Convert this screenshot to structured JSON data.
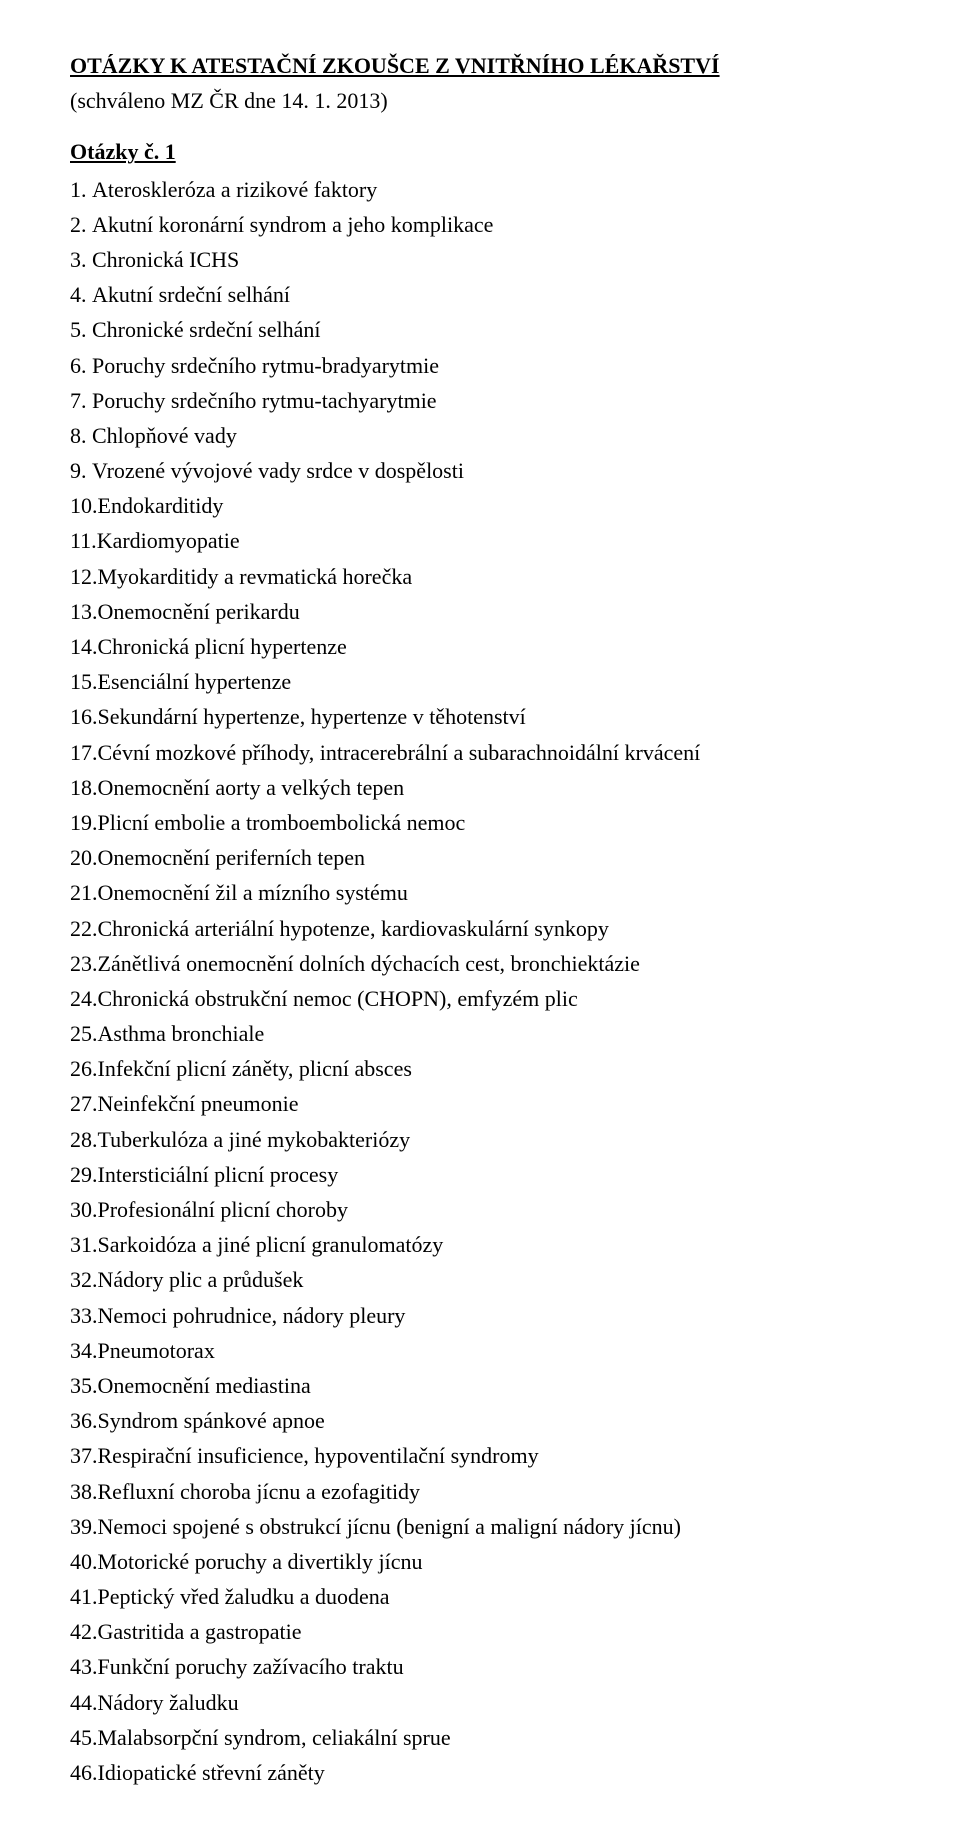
{
  "document": {
    "title": "OTÁZKY K ATESTAČNÍ ZKOUŠCE  Z VNITŘNÍHO LÉKAŘSTVÍ",
    "subtitle": "(schváleno MZ ČR dne 14. 1. 2013)",
    "section_heading": "Otázky č. 1",
    "font_family": "Times New Roman",
    "font_size_pt": 16,
    "text_color": "#000000",
    "background_color": "#ffffff"
  },
  "items": [
    {
      "n": "1.",
      "t": "Ateroskleróza a rizikové faktory",
      "pad": " "
    },
    {
      "n": "2.",
      "t": "Akutní koronární syndrom a jeho komplikace",
      "pad": " "
    },
    {
      "n": "3.",
      "t": "Chronická ICHS",
      "pad": " "
    },
    {
      "n": "4.",
      "t": "Akutní srdeční selhání",
      "pad": " "
    },
    {
      "n": "5.",
      "t": "Chronické srdeční selhání",
      "pad": " "
    },
    {
      "n": "6.",
      "t": "Poruchy srdečního rytmu-bradyarytmie",
      "pad": " "
    },
    {
      "n": "7.",
      "t": "Poruchy srdečního rytmu-tachyarytmie",
      "pad": " "
    },
    {
      "n": "8.",
      "t": "Chlopňové vady",
      "pad": " "
    },
    {
      "n": "9.",
      "t": "Vrozené vývojové vady srdce v dospělosti",
      "pad": " "
    },
    {
      "n": "10.",
      "t": "Endokarditidy",
      "pad": ""
    },
    {
      "n": "11.",
      "t": "Kardiomyopatie",
      "pad": ""
    },
    {
      "n": "12.",
      "t": "Myokarditidy a revmatická horečka",
      "pad": ""
    },
    {
      "n": "13.",
      "t": "Onemocnění perikardu",
      "pad": ""
    },
    {
      "n": "14.",
      "t": "Chronická plicní hypertenze",
      "pad": ""
    },
    {
      "n": "15.",
      "t": "Esenciální hypertenze",
      "pad": ""
    },
    {
      "n": "16.",
      "t": "Sekundární hypertenze, hypertenze v těhotenství",
      "pad": ""
    },
    {
      "n": "17.",
      "t": "Cévní mozkové příhody, intracerebrální a subarachnoidální krvácení",
      "pad": ""
    },
    {
      "n": "18.",
      "t": "Onemocnění aorty a velkých tepen",
      "pad": ""
    },
    {
      "n": "19.",
      "t": "Plicní embolie a tromboembolická  nemoc",
      "pad": ""
    },
    {
      "n": "20.",
      "t": "Onemocnění periferních tepen",
      "pad": ""
    },
    {
      "n": "21.",
      "t": "Onemocnění žil a mízního systému",
      "pad": ""
    },
    {
      "n": "22.",
      "t": "Chronická arteriální hypotenze, kardiovaskulární synkopy",
      "pad": ""
    },
    {
      "n": "23.",
      "t": "Zánětlivá onemocnění dolních dýchacích cest, bronchiektázie",
      "pad": ""
    },
    {
      "n": "24.",
      "t": "Chronická obstrukční nemoc (CHOPN), emfyzém plic",
      "pad": ""
    },
    {
      "n": "25.",
      "t": "Asthma bronchiale",
      "pad": ""
    },
    {
      "n": "26.",
      "t": "Infekční plicní záněty, plicní absces",
      "pad": ""
    },
    {
      "n": "27.",
      "t": "Neinfekční pneumonie",
      "pad": ""
    },
    {
      "n": "28.",
      "t": "Tuberkulóza a jiné mykobakteriózy",
      "pad": ""
    },
    {
      "n": "29.",
      "t": "Intersticiální plicní procesy",
      "pad": ""
    },
    {
      "n": "30.",
      "t": "Profesionální plicní choroby",
      "pad": ""
    },
    {
      "n": "31.",
      "t": "Sarkoidóza a jiné plicní granulomatózy",
      "pad": ""
    },
    {
      "n": "32.",
      "t": "Nádory plic a průdušek",
      "pad": ""
    },
    {
      "n": "33.",
      "t": "Nemoci pohrudnice, nádory pleury",
      "pad": ""
    },
    {
      "n": "34.",
      "t": "Pneumotorax",
      "pad": ""
    },
    {
      "n": "35.",
      "t": "Onemocnění mediastina",
      "pad": ""
    },
    {
      "n": "36.",
      "t": "Syndrom spánkové apnoe",
      "pad": ""
    },
    {
      "n": "37.",
      "t": "Respirační insuficience, hypoventilační syndromy",
      "pad": ""
    },
    {
      "n": "38.",
      "t": "Refluxní choroba jícnu a ezofagitidy",
      "pad": ""
    },
    {
      "n": "39.",
      "t": "Nemoci spojené s obstrukcí jícnu (benigní a maligní nádory jícnu)",
      "pad": ""
    },
    {
      "n": "40.",
      "t": "Motorické poruchy a divertikly jícnu",
      "pad": ""
    },
    {
      "n": "41.",
      "t": "Peptický vřed žaludku a duodena",
      "pad": ""
    },
    {
      "n": "42.",
      "t": "Gastritida a gastropatie",
      "pad": ""
    },
    {
      "n": "43.",
      "t": "Funkční poruchy zažívacího traktu",
      "pad": ""
    },
    {
      "n": "44.",
      "t": "Nádory žaludku",
      "pad": ""
    },
    {
      "n": "45.",
      "t": "Malabsorpční syndrom, celiakální sprue",
      "pad": ""
    },
    {
      "n": "46.",
      "t": "Idiopatické střevní záněty",
      "pad": ""
    }
  ]
}
